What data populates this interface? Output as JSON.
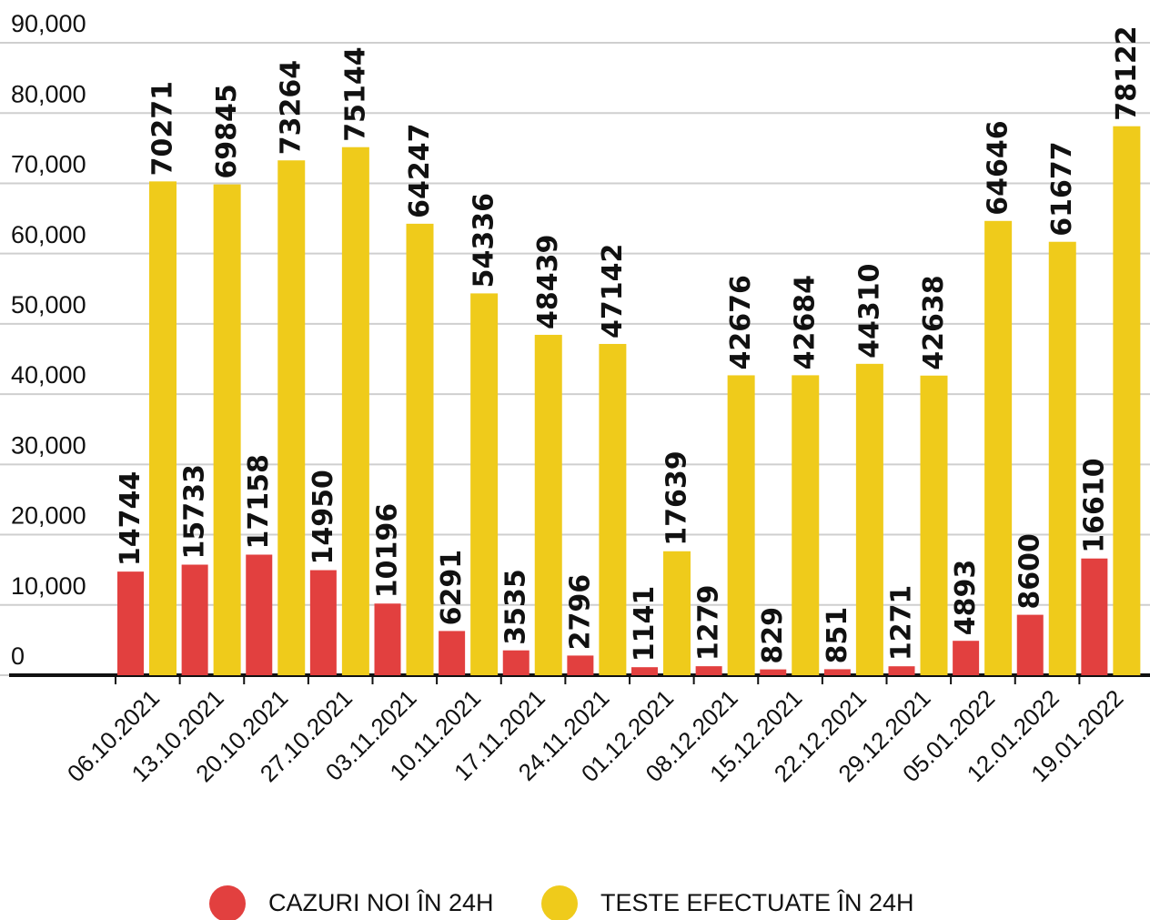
{
  "chart_data": {
    "type": "bar",
    "categories": [
      "06.10.2021",
      "13.10.2021",
      "20.10.2021",
      "27.10.2021",
      "03.11.2021",
      "10.11.2021",
      "17.11.2021",
      "24.11.2021",
      "01.12.2021",
      "08.12.2021",
      "15.12.2021",
      "22.12.2021",
      "29.12.2021",
      "05.01.2022",
      "12.01.2022",
      "19.01.2022"
    ],
    "series": [
      {
        "name": "CAZURI NOI ÎN 24H",
        "color": "#e2403f",
        "values": [
          14744,
          15733,
          17158,
          14950,
          10196,
          6291,
          3535,
          2796,
          1141,
          1279,
          829,
          851,
          1271,
          4893,
          8600,
          16610
        ]
      },
      {
        "name": "TESTE EFECTUATE ÎN 24H",
        "color": "#efcb1b",
        "values": [
          70271,
          69845,
          73264,
          75144,
          64247,
          54336,
          48439,
          47142,
          17639,
          42676,
          42684,
          44310,
          42638,
          64646,
          61677,
          78122
        ]
      }
    ],
    "ylim": [
      0,
      90000
    ],
    "yticks": [
      0,
      {
        "value": 10000,
        "label": "10,000"
      },
      {
        "value": 20000,
        "label": "20,000"
      },
      {
        "value": 30000,
        "label": "30,000"
      },
      {
        "value": 40000,
        "label": "40,000"
      },
      {
        "value": 50000,
        "label": "50,000"
      },
      {
        "value": 60000,
        "label": "60,000"
      },
      {
        "value": 70000,
        "label": "70,000"
      },
      {
        "value": 80000,
        "label": "80,000"
      },
      {
        "value": 90000,
        "label": "90,000"
      }
    ],
    "grid": true,
    "legend": "bottom"
  }
}
